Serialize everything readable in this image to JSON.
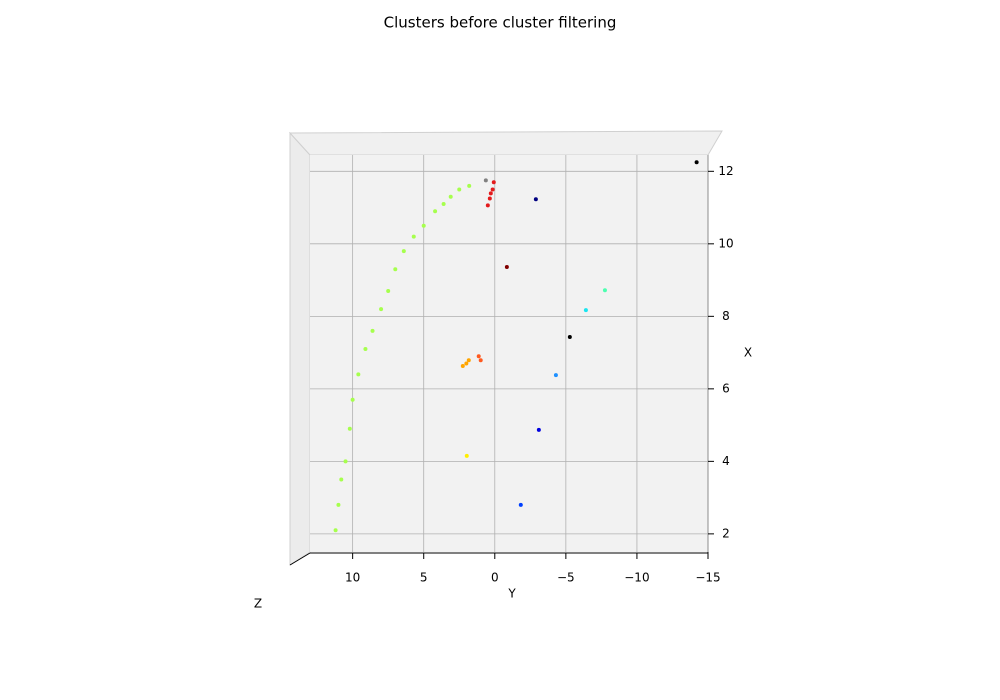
{
  "chart_data": {
    "type": "scatter3d",
    "title": "Clusters before cluster filtering",
    "xlabel": "Y",
    "ylabel": "X",
    "zlabel": "Z",
    "xlim": [
      13,
      -15
    ],
    "ylim": [
      1.5,
      12.45
    ],
    "xticks": [
      10,
      5,
      0,
      {
        "value": -5,
        "label": "−5"
      },
      {
        "value": -10,
        "label": "−10"
      },
      {
        "value": -15,
        "label": "−15"
      }
    ],
    "yticks": [
      2,
      4,
      6,
      8,
      10,
      12
    ],
    "grid": true,
    "series": [
      {
        "color": "#a6ff4d",
        "x": [
          11.2,
          11.0,
          10.8,
          10.5,
          10.2,
          10.0,
          9.6,
          9.1,
          8.6,
          8.0,
          7.5,
          7.0,
          6.4,
          5.7,
          5.0,
          4.2,
          3.6,
          3.1,
          2.5,
          1.8
        ],
        "values": [
          2.1,
          2.8,
          3.5,
          4.0,
          4.9,
          5.7,
          6.4,
          7.1,
          7.6,
          8.2,
          8.7,
          9.3,
          9.8,
          10.2,
          10.5,
          10.9,
          11.1,
          11.3,
          11.5,
          11.6
        ]
      },
      {
        "color": "#e31a1c",
        "x": [
          0.28,
          0.49,
          0.07,
          0.35,
          0.15
        ],
        "values": [
          11.39,
          11.06,
          11.7,
          11.25,
          11.5
        ]
      },
      {
        "color": "#808080",
        "x": [
          0.63
        ],
        "values": [
          11.75
        ]
      },
      {
        "color": "#000080",
        "x": [
          -2.89
        ],
        "values": [
          11.23
        ]
      },
      {
        "color": "#000000",
        "x": [
          -14.2,
          -5.28
        ],
        "values": [
          12.25,
          7.43
        ]
      },
      {
        "color": "#800000",
        "x": [
          -0.85
        ],
        "values": [
          9.36
        ]
      },
      {
        "color": "#4dffb0",
        "x": [
          -7.75
        ],
        "values": [
          8.72
        ]
      },
      {
        "color": "#1ae5f0",
        "x": [
          -6.41
        ],
        "values": [
          8.17
        ]
      },
      {
        "color": "#ffa500",
        "x": [
          2.25,
          2.0,
          1.83
        ],
        "values": [
          6.63,
          6.7,
          6.79
        ]
      },
      {
        "color": "#ff5a1f",
        "x": [
          1.13,
          0.99
        ],
        "values": [
          6.9,
          6.79
        ]
      },
      {
        "color": "#1e90ff",
        "x": [
          -4.3
        ],
        "values": [
          6.38
        ]
      },
      {
        "color": "#0000e0",
        "x": [
          -3.1
        ],
        "values": [
          4.87
        ]
      },
      {
        "color": "#ffee00",
        "x": [
          1.97
        ],
        "values": [
          4.15
        ]
      },
      {
        "color": "#0040ff",
        "x": [
          -1.83
        ],
        "values": [
          2.8
        ]
      }
    ]
  }
}
